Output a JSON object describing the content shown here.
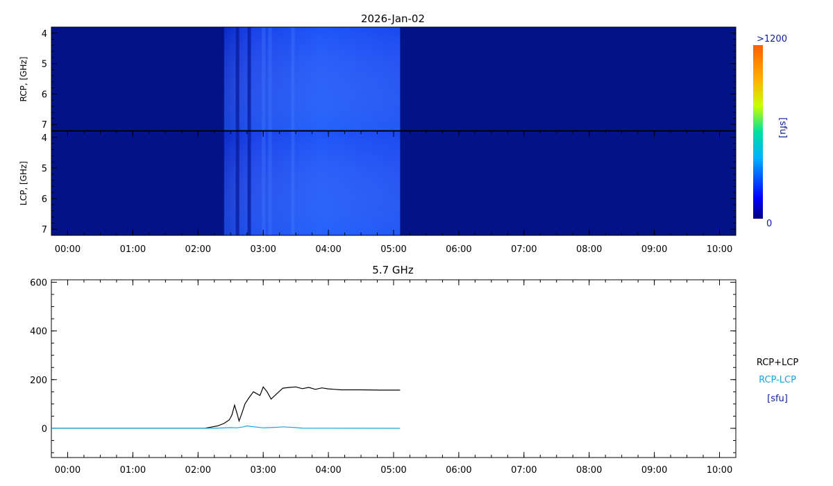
{
  "title": "2026-Jan-02",
  "colors": {
    "background_blue": "#02138a",
    "burst_blue": "#1a4cf5",
    "sum_line": "#000000",
    "diff_line": "#1aa5d8",
    "legend_unit": "#0d1aa0",
    "colorbar_label": "#0d1aa0"
  },
  "chart_data": [
    {
      "type": "heatmap",
      "name": "rcp-spectrogram",
      "ylabel": "RCP, [GHz]",
      "x_ticks": [
        "00:00",
        "01:00",
        "02:00",
        "03:00",
        "04:00",
        "05:00",
        "06:00",
        "07:00",
        "08:00",
        "09:00",
        "10:00"
      ],
      "y_ticks": [
        "4",
        "5",
        "6",
        "7"
      ],
      "xlim_hours": [
        -0.25,
        10.25
      ],
      "ylim_ghz": [
        3.8,
        7.2
      ],
      "data_end_hour": 5.1,
      "burst_start_hour": 2.4,
      "bright_streaks_hours": [
        2.6,
        2.78,
        3.0,
        3.1,
        3.45
      ]
    },
    {
      "type": "heatmap",
      "name": "lcp-spectrogram",
      "ylabel": "LCP, [GHz]",
      "x_ticks": [
        "00:00",
        "01:00",
        "02:00",
        "03:00",
        "04:00",
        "05:00",
        "06:00",
        "07:00",
        "08:00",
        "09:00",
        "10:00"
      ],
      "y_ticks": [
        "4",
        "5",
        "6",
        "7"
      ],
      "xlim_hours": [
        -0.25,
        10.25
      ],
      "ylim_ghz": [
        3.8,
        7.2
      ],
      "data_end_hour": 5.1,
      "burst_start_hour": 2.4,
      "bright_streaks_hours": [
        2.6,
        2.78,
        3.0,
        3.1,
        3.45
      ]
    },
    {
      "type": "line",
      "name": "flux-5.7ghz",
      "title": "5.7 GHz",
      "x_ticks": [
        "00:00",
        "01:00",
        "02:00",
        "03:00",
        "04:00",
        "05:00",
        "06:00",
        "07:00",
        "08:00",
        "09:00",
        "10:00"
      ],
      "y_ticks": [
        "0",
        "200",
        "400",
        "600"
      ],
      "xlim_hours": [
        -0.25,
        10.25
      ],
      "ylim": [
        -120,
        610
      ],
      "series": [
        {
          "name": "RCP+LCP",
          "x": [
            -0.25,
            2.1,
            2.2,
            2.3,
            2.4,
            2.48,
            2.52,
            2.56,
            2.6,
            2.63,
            2.67,
            2.72,
            2.78,
            2.85,
            2.95,
            3.0,
            3.06,
            3.12,
            3.2,
            3.3,
            3.4,
            3.5,
            3.6,
            3.7,
            3.8,
            3.9,
            4.0,
            4.1,
            4.2,
            4.5,
            4.8,
            5.1
          ],
          "y": [
            0,
            0,
            5,
            10,
            20,
            35,
            55,
            95,
            60,
            30,
            60,
            100,
            125,
            150,
            135,
            170,
            150,
            120,
            140,
            165,
            168,
            170,
            163,
            168,
            160,
            166,
            162,
            160,
            158,
            158,
            157,
            157
          ]
        },
        {
          "name": "RCP-LCP",
          "x": [
            -0.25,
            2.1,
            2.3,
            2.5,
            2.6,
            2.7,
            2.75,
            2.8,
            2.9,
            3.0,
            3.2,
            3.3,
            3.5,
            3.6,
            5.1
          ],
          "y": [
            0,
            0,
            1,
            3,
            2,
            6,
            10,
            8,
            5,
            2,
            4,
            6,
            3,
            1,
            0
          ]
        }
      ]
    }
  ],
  "colorbar": {
    "max_label": ">1200",
    "min_label": "0",
    "unit_label": "[sfu]"
  },
  "legend": {
    "sum_label": "RCP+LCP",
    "diff_label": "RCP-LCP",
    "unit_label": "[sfu]"
  }
}
